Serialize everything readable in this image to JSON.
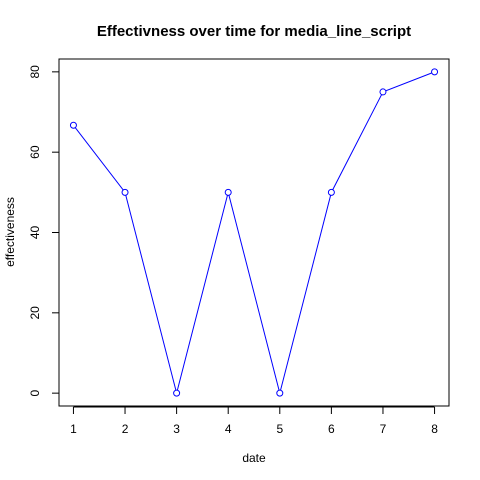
{
  "chart_data": {
    "type": "line",
    "title": "Effectivness over time for media_line_script",
    "xlabel": "date",
    "ylabel": "effectiveness",
    "x": [
      1,
      2,
      3,
      4,
      5,
      6,
      7,
      8
    ],
    "series": [
      {
        "values": [
          66.7,
          50,
          0,
          50,
          0,
          50,
          75,
          80
        ],
        "color": "#0000ff"
      }
    ],
    "x_ticks": [
      1,
      2,
      3,
      4,
      5,
      6,
      7,
      8
    ],
    "y_ticks": [
      0,
      20,
      40,
      60,
      80
    ],
    "xlim": [
      0.72,
      8.28
    ],
    "ylim": [
      -3.2,
      83.2
    ],
    "grid": false,
    "markers": "open-circle"
  }
}
